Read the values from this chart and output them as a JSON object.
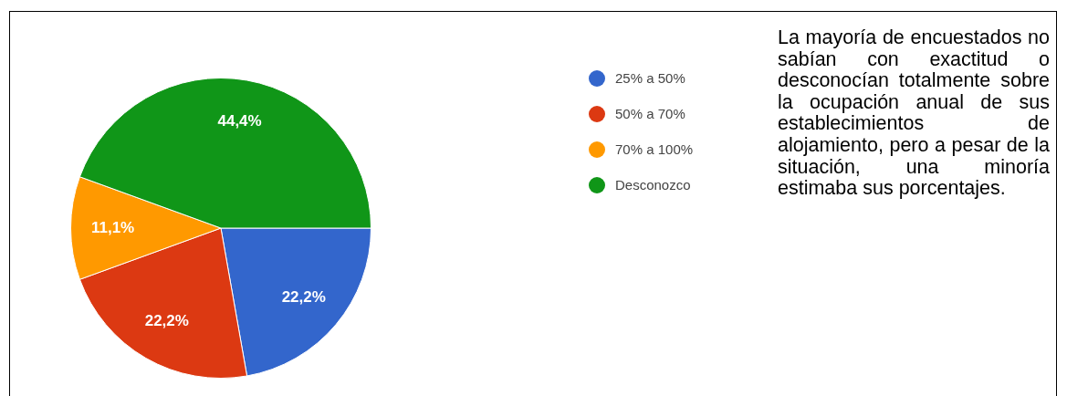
{
  "chart_data": {
    "type": "pie",
    "categories": [
      "25% a 50%",
      "50% a 70%",
      "70% a 100%",
      "Desconozco"
    ],
    "values": [
      22.2,
      22.2,
      11.1,
      44.4
    ],
    "colors": [
      "#3366cc",
      "#dc3912",
      "#ff9900",
      "#109618"
    ],
    "value_labels": [
      "22,2%",
      "22,2%",
      "11,1%",
      "44,4%"
    ],
    "legend": "right",
    "annotations": [
      "La mayoría de encuestados no sabían con exactitud o desconocían totalmente sobre la ocupación anual de sus establecimientos de alojamiento, pero a pesar de la situación, una minoría estimaba sus porcentajes."
    ]
  }
}
